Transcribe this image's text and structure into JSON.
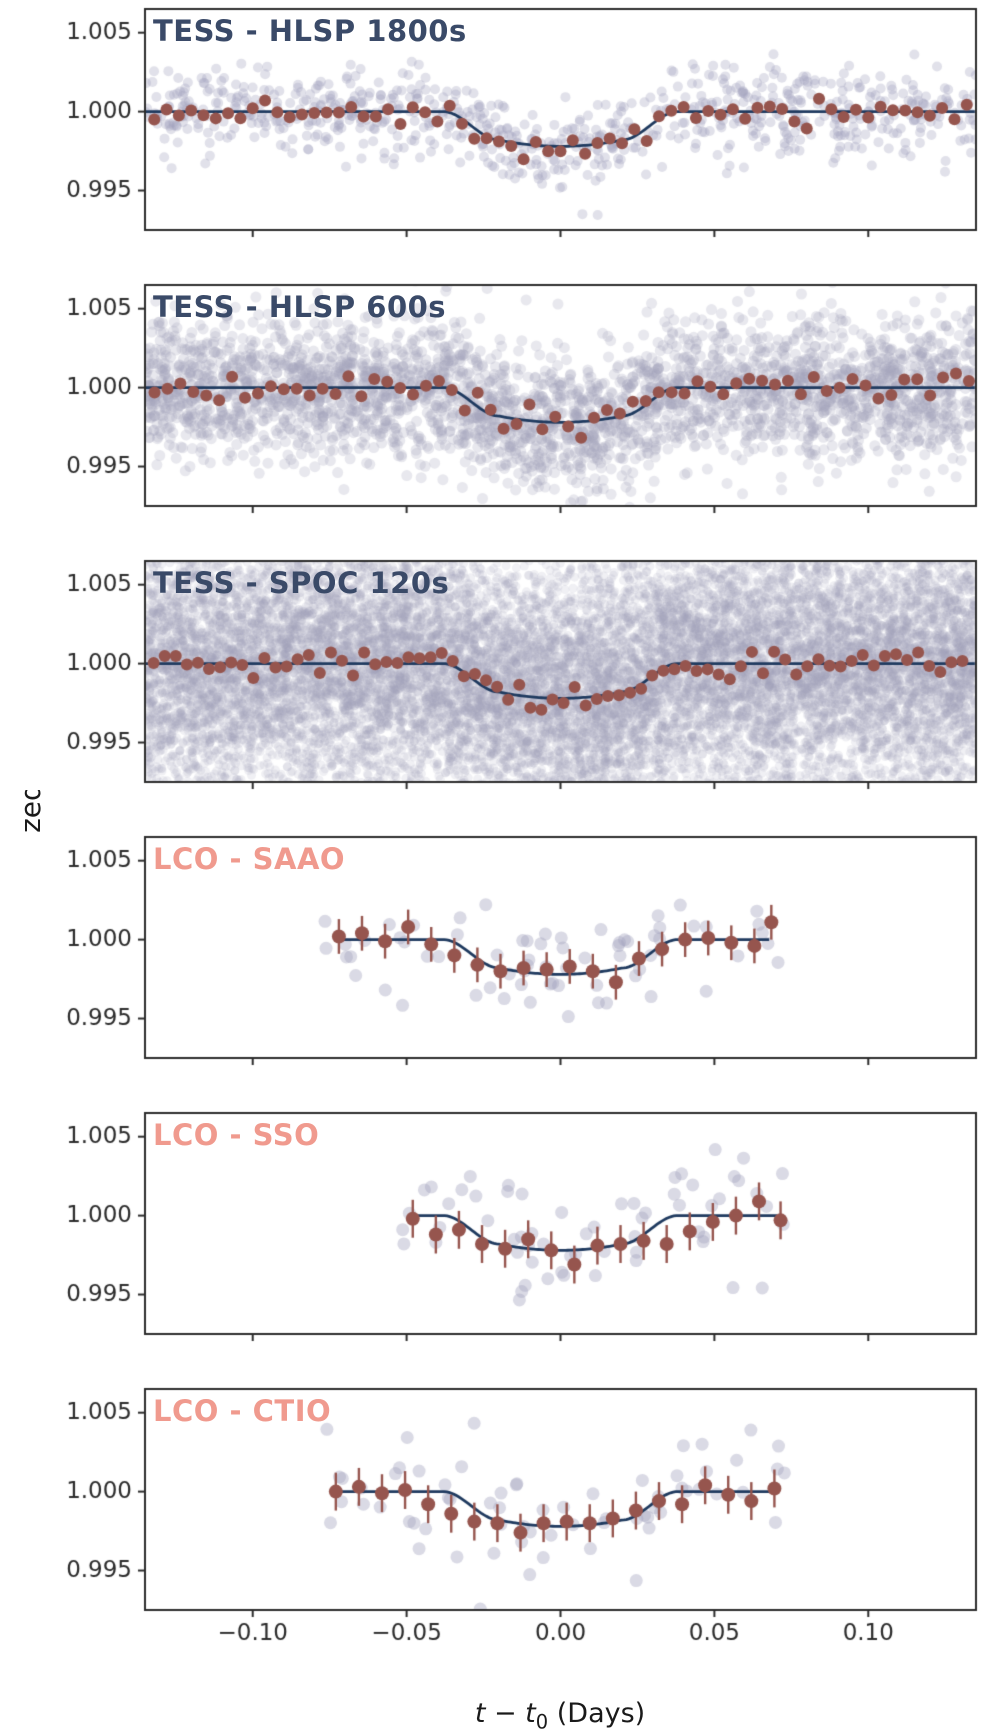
{
  "figure": {
    "ylabel": "Normalized Flux",
    "xlabel_parts": {
      "pre": "t − t",
      "sub": "0",
      "post": " (Days)"
    },
    "x_range": [
      -0.135,
      0.135
    ],
    "y_range": [
      0.9925,
      1.0065
    ],
    "x_ticks": [
      {
        "v": -0.1,
        "label": "−0.10"
      },
      {
        "v": -0.05,
        "label": "−0.05"
      },
      {
        "v": 0.0,
        "label": "0.00"
      },
      {
        "v": 0.05,
        "label": "0.05"
      },
      {
        "v": 0.1,
        "label": "0.10"
      }
    ],
    "y_ticks": [
      {
        "v": 0.995,
        "label": "0.995"
      },
      {
        "v": 1.0,
        "label": "1.000"
      },
      {
        "v": 1.005,
        "label": "1.005"
      }
    ]
  },
  "colors": {
    "model_line": "#1f3a5f",
    "scatter": "#a3a3bd",
    "binned": "#96554e",
    "tess_title": "#3a4a68",
    "lco_title": "#f09a8e",
    "axis": "#2b2b2b"
  },
  "model": {
    "description": "Transit model: flat at 1.0 outside transit, depth ~0.0022 with slight limb-darkened curvature at bottom",
    "depth": 0.0022,
    "curve": 0.0004,
    "t2": 0.02,
    "t4": 0.038
  },
  "chart_data": [
    {
      "type": "scatter",
      "title": "TESS - HLSP 1800s",
      "series": "tess",
      "model_range": [
        -0.135,
        0.135
      ],
      "scatter": {
        "n": 800,
        "sigma": 0.00135,
        "alpha": 0.32,
        "radius": 5,
        "xmin": -0.135,
        "xmax": 0.135,
        "seed": 101,
        "uniform_frac": 0
      },
      "binned": {
        "mode": "generate",
        "xmin": -0.134,
        "xmax": 0.134,
        "spacing": 0.004,
        "sigma": 0.00042,
        "radius": 6,
        "seed": 201
      }
    },
    {
      "type": "scatter",
      "title": "TESS - HLSP 600s",
      "series": "tess",
      "model_range": [
        -0.135,
        0.135
      ],
      "scatter": {
        "n": 3200,
        "sigma": 0.0022,
        "alpha": 0.25,
        "radius": 5.5,
        "xmin": -0.135,
        "xmax": 0.135,
        "seed": 102,
        "uniform_frac": 0
      },
      "binned": {
        "mode": "generate",
        "xmin": -0.134,
        "xmax": 0.134,
        "spacing": 0.0042,
        "sigma": 0.0005,
        "radius": 6,
        "seed": 202
      }
    },
    {
      "type": "scatter",
      "title": "TESS - SPOC 120s",
      "series": "tess",
      "model_range": [
        -0.135,
        0.135
      ],
      "scatter": {
        "n": 16000,
        "sigma": 0.0036,
        "alpha": 0.16,
        "radius": 4.5,
        "xmin": -0.135,
        "xmax": 0.135,
        "seed": 103,
        "uniform_frac": 0.22
      },
      "binned": {
        "mode": "generate",
        "xmin": -0.134,
        "xmax": 0.134,
        "spacing": 0.0036,
        "sigma": 0.00042,
        "radius": 6,
        "seed": 203
      }
    },
    {
      "type": "scatter",
      "title": "LCO - SAAO",
      "series": "lco",
      "model_range": [
        -0.073,
        0.068
      ],
      "scatter": {
        "n": 70,
        "sigma": 0.0018,
        "alpha": 0.4,
        "radius": 6.5,
        "xmin": -0.078,
        "xmax": 0.072,
        "seed": 104,
        "uniform_frac": 0
      },
      "binned": {
        "mode": "points",
        "radius": 7,
        "err": 0.0011,
        "points": [
          [
            -0.072,
            1.0002
          ],
          [
            -0.0645,
            1.0004
          ],
          [
            -0.057,
            0.9999
          ],
          [
            -0.0495,
            1.0008
          ],
          [
            -0.042,
            0.9997
          ],
          [
            -0.0345,
            0.999
          ],
          [
            -0.027,
            0.9984
          ],
          [
            -0.0195,
            0.998
          ],
          [
            -0.012,
            0.9982
          ],
          [
            -0.0045,
            0.9981
          ],
          [
            0.003,
            0.9983
          ],
          [
            0.0105,
            0.998
          ],
          [
            0.018,
            0.9973
          ],
          [
            0.0255,
            0.9988
          ],
          [
            0.033,
            0.9994
          ],
          [
            0.0405,
            1.0
          ],
          [
            0.048,
            1.0001
          ],
          [
            0.0555,
            0.9998
          ],
          [
            0.063,
            0.9996
          ],
          [
            0.0685,
            1.0011
          ]
        ]
      }
    },
    {
      "type": "scatter",
      "title": "LCO - SSO",
      "series": "lco",
      "model_range": [
        -0.048,
        0.071
      ],
      "scatter": {
        "n": 62,
        "sigma": 0.0019,
        "alpha": 0.4,
        "radius": 6.5,
        "xmin": -0.053,
        "xmax": 0.073,
        "seed": 105,
        "uniform_frac": 0
      },
      "binned": {
        "mode": "points",
        "radius": 7,
        "err": 0.0012,
        "points": [
          [
            -0.048,
            0.9998
          ],
          [
            -0.0405,
            0.9988
          ],
          [
            -0.033,
            0.9991
          ],
          [
            -0.0255,
            0.9982
          ],
          [
            -0.018,
            0.9979
          ],
          [
            -0.0105,
            0.9985
          ],
          [
            -0.003,
            0.9978
          ],
          [
            0.0045,
            0.9969
          ],
          [
            0.012,
            0.9981
          ],
          [
            0.0195,
            0.9982
          ],
          [
            0.027,
            0.9984
          ],
          [
            0.0345,
            0.9982
          ],
          [
            0.042,
            0.999
          ],
          [
            0.0495,
            0.9996
          ],
          [
            0.057,
            1.0
          ],
          [
            0.0645,
            1.0009
          ],
          [
            0.0715,
            0.9997
          ]
        ]
      }
    },
    {
      "type": "scatter",
      "title": "LCO - CTIO",
      "series": "lco",
      "model_range": [
        -0.073,
        0.071
      ],
      "scatter": {
        "n": 68,
        "sigma": 0.0018,
        "alpha": 0.4,
        "radius": 6.5,
        "xmin": -0.078,
        "xmax": 0.073,
        "seed": 106,
        "uniform_frac": 0
      },
      "binned": {
        "mode": "points",
        "radius": 7,
        "err": 0.0012,
        "points": [
          [
            -0.073,
            1.0
          ],
          [
            -0.0655,
            1.0003
          ],
          [
            -0.058,
            0.9999
          ],
          [
            -0.0505,
            1.0001
          ],
          [
            -0.043,
            0.9992
          ],
          [
            -0.0355,
            0.9986
          ],
          [
            -0.028,
            0.9981
          ],
          [
            -0.0205,
            0.998
          ],
          [
            -0.013,
            0.9974
          ],
          [
            -0.0055,
            0.998
          ],
          [
            0.002,
            0.9981
          ],
          [
            0.0095,
            0.998
          ],
          [
            0.017,
            0.9983
          ],
          [
            0.0245,
            0.9988
          ],
          [
            0.032,
            0.9994
          ],
          [
            0.0395,
            0.9992
          ],
          [
            0.047,
            1.0004
          ],
          [
            0.0545,
            0.9998
          ],
          [
            0.062,
            0.9994
          ],
          [
            0.0695,
            1.0002
          ]
        ]
      }
    }
  ]
}
